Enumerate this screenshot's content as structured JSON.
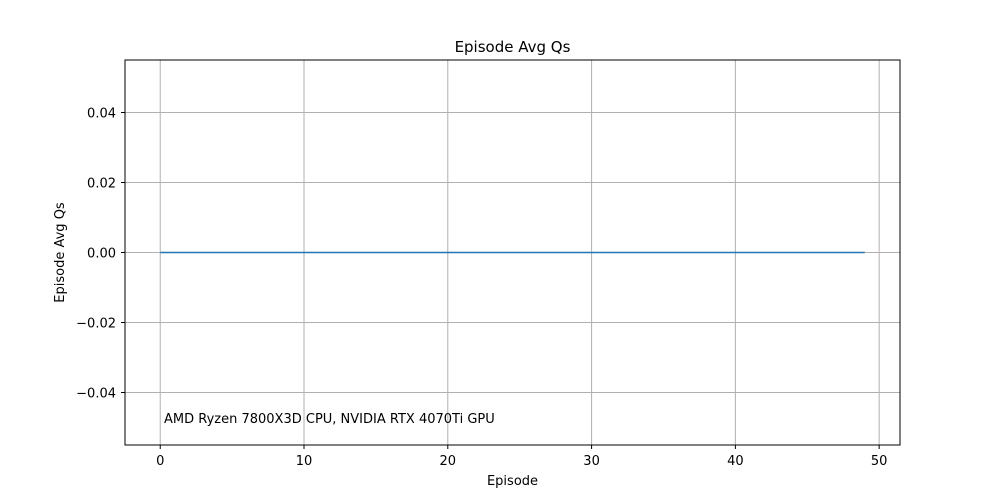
{
  "chart_data": {
    "type": "line",
    "title": "Episode Avg Qs",
    "xlabel": "Episode",
    "ylabel": "Episode Avg Qs",
    "xlim": [
      -2.45,
      51.45
    ],
    "ylim": [
      -0.055,
      0.055
    ],
    "xticks": [
      0,
      10,
      20,
      30,
      40,
      50
    ],
    "xtick_labels": [
      "0",
      "10",
      "20",
      "30",
      "40",
      "50"
    ],
    "yticks": [
      -0.04,
      -0.02,
      0.0,
      0.02,
      0.04
    ],
    "ytick_labels": [
      "−0.04",
      "−0.02",
      "0.00",
      "0.02",
      "0.04"
    ],
    "grid": true,
    "annotation": "AMD Ryzen 7800X3D CPU, NVIDIA RTX 4070Ti GPU",
    "series": [
      {
        "color": "#1f77b4",
        "x": [
          0,
          1,
          2,
          3,
          4,
          5,
          6,
          7,
          8,
          9,
          10,
          11,
          12,
          13,
          14,
          15,
          16,
          17,
          18,
          19,
          20,
          21,
          22,
          23,
          24,
          25,
          26,
          27,
          28,
          29,
          30,
          31,
          32,
          33,
          34,
          35,
          36,
          37,
          38,
          39,
          40,
          41,
          42,
          43,
          44,
          45,
          46,
          47,
          48,
          49
        ],
        "y": [
          0,
          0,
          0,
          0,
          0,
          0,
          0,
          0,
          0,
          0,
          0,
          0,
          0,
          0,
          0,
          0,
          0,
          0,
          0,
          0,
          0,
          0,
          0,
          0,
          0,
          0,
          0,
          0,
          0,
          0,
          0,
          0,
          0,
          0,
          0,
          0,
          0,
          0,
          0,
          0,
          0,
          0,
          0,
          0,
          0,
          0,
          0,
          0,
          0,
          0
        ]
      }
    ]
  }
}
